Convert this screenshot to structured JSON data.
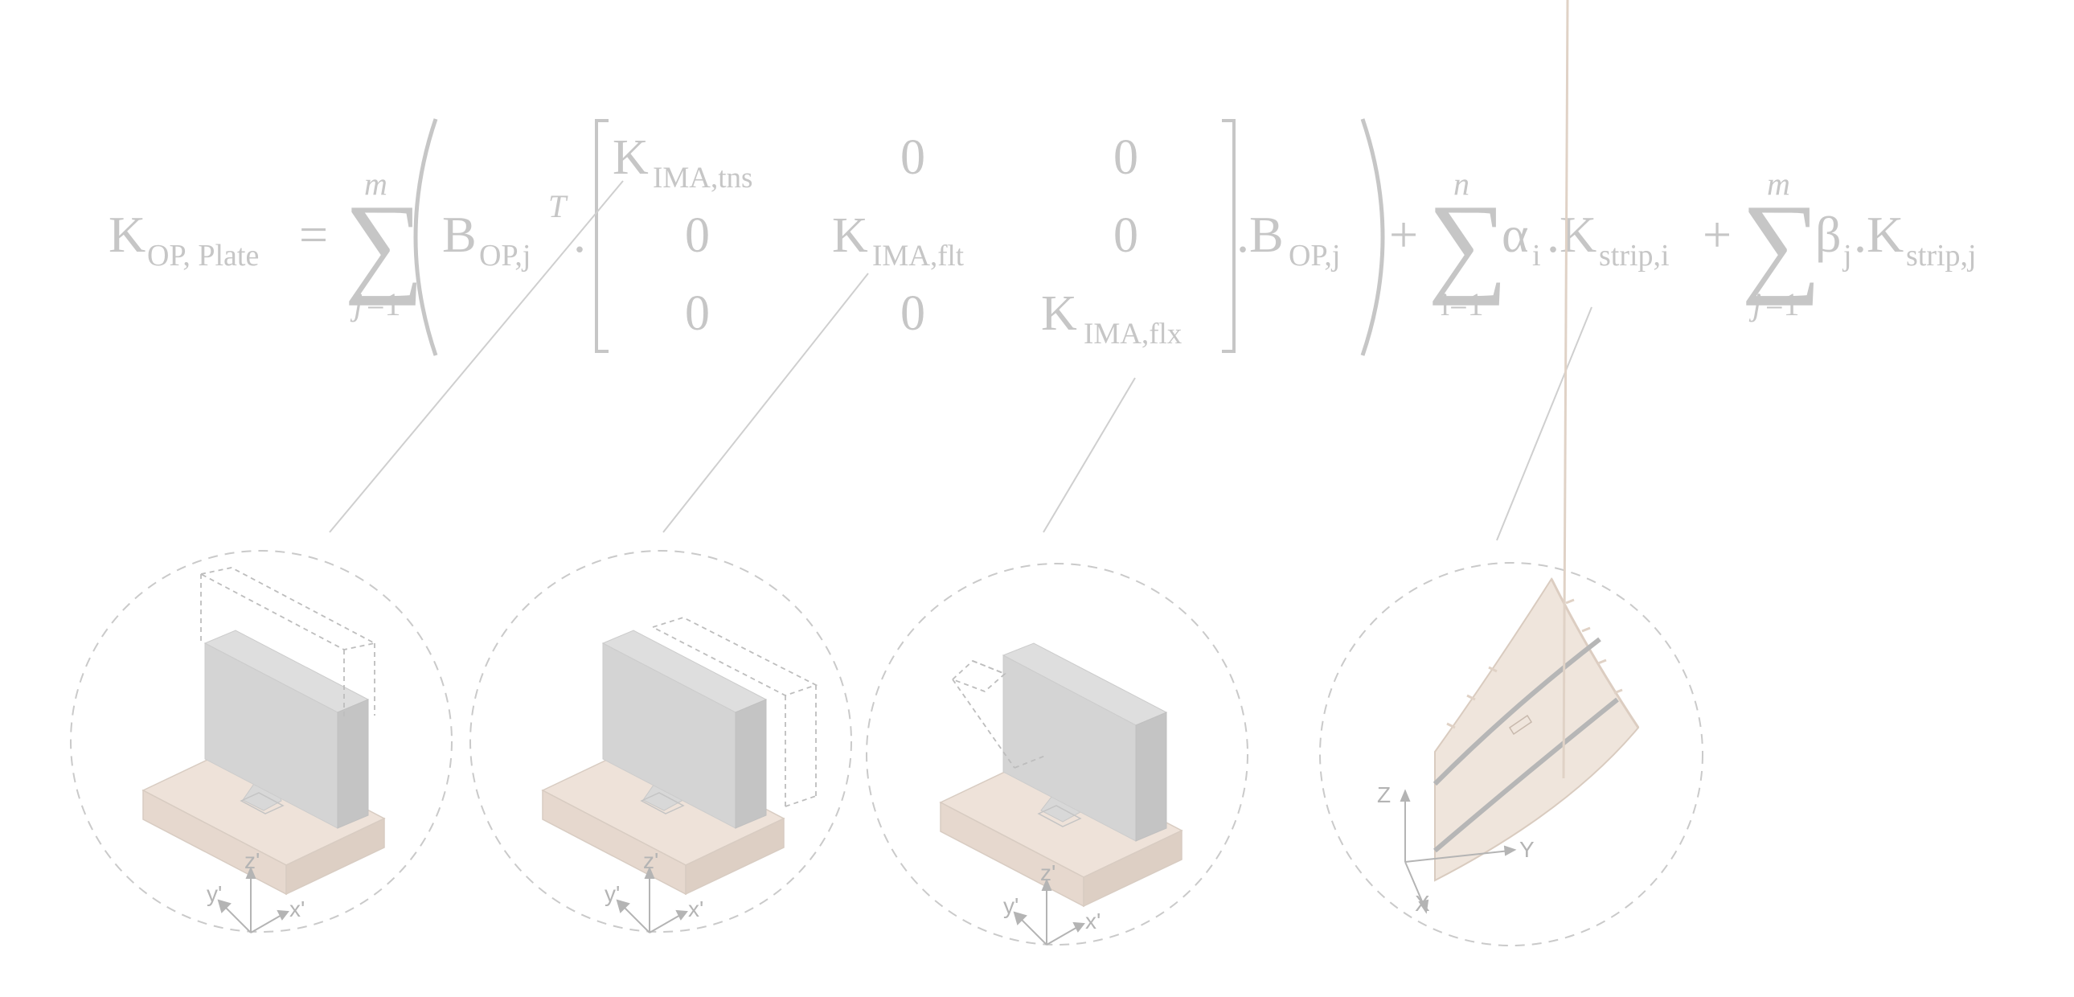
{
  "equation": {
    "lhs": {
      "symbol": "K",
      "subscript": "OP, Plate",
      "equals": "="
    },
    "sum_main": {
      "symbol": "∑",
      "upper": "m",
      "lower_var": "j",
      "lower_rest": "=1"
    },
    "b_transpose": {
      "symbol": "B",
      "subscript": "OP,j",
      "superscript": "T",
      "dot": "."
    },
    "matrix": {
      "k_tns": {
        "symbol": "K",
        "subscript": "IMA,tns"
      },
      "k_flt": {
        "symbol": "K",
        "subscript": "IMA,flt"
      },
      "k_flx": {
        "symbol": "K",
        "subscript": "IMA,flx"
      },
      "zero": "0"
    },
    "b_after": {
      "symbol": ".B",
      "subscript": "OP,j"
    },
    "plus": "+",
    "sum_alpha": {
      "symbol": "∑",
      "upper": "n",
      "lower": "i=1",
      "term": "α",
      "term_sub": "i",
      "k": ".K",
      "k_sub": "strip,i"
    },
    "sum_beta": {
      "symbol": "∑",
      "upper": "m",
      "lower_var": "j",
      "lower_rest": "=1",
      "term": "β",
      "term_sub": "j",
      "k": ".K",
      "k_sub": "strip,j"
    }
  },
  "axes": {
    "local": {
      "z": "z'",
      "y": "y'",
      "x": "x'"
    },
    "global": {
      "z": "Z",
      "y": "Y",
      "x": "X"
    }
  },
  "colors": {
    "text": "#c6c6c6",
    "leader": "#cfcfcf",
    "circle": "#cacaca",
    "wall_front": "#d4d4d4",
    "wall_side": "#c4c4c4",
    "wall_top": "#dedede",
    "base_top": "#eee2d9",
    "base_front": "#e6d8ce",
    "base_side": "#ddcfc4",
    "panel": "#efe5dc",
    "strip": "#b6b6b6"
  }
}
